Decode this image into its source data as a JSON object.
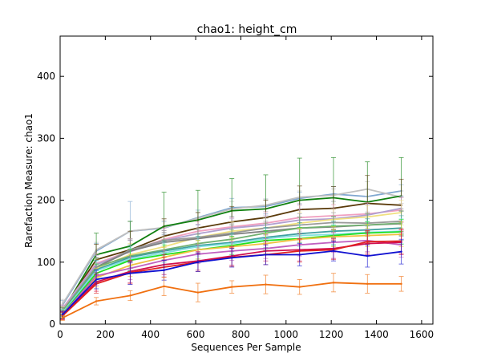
{
  "chart_data": {
    "type": "line",
    "title": "chao1: height_cm",
    "xlabel": "Sequences Per Sample",
    "ylabel": "Rarefaction Measure: chao1",
    "xlim": [
      0,
      1650
    ],
    "ylim": [
      0,
      465
    ],
    "xticks": [
      0,
      200,
      400,
      600,
      800,
      1000,
      1200,
      1400,
      1600
    ],
    "yticks": [
      0,
      100,
      200,
      300,
      400
    ],
    "x": [
      10,
      160,
      310,
      460,
      610,
      760,
      910,
      1060,
      1210,
      1360,
      1510
    ],
    "grid": false,
    "legend": "none",
    "series": [
      {
        "color": "#7fa7d0",
        "values": [
          30,
          118,
          150,
          155,
          172,
          188,
          190,
          203,
          210,
          206,
          215
        ],
        "err": [
          8,
          12,
          48,
          10,
          12,
          15,
          12,
          10,
          12,
          12,
          10
        ]
      },
      {
        "color": "#c0c0c0",
        "values": [
          32,
          120,
          150,
          156,
          171,
          186,
          192,
          205,
          208,
          218,
          205
        ],
        "err": [
          8,
          12,
          15,
          12,
          10,
          12,
          10,
          10,
          10,
          12,
          10
        ]
      },
      {
        "color": "#108010",
        "values": [
          20,
          112,
          126,
          158,
          168,
          183,
          186,
          200,
          204,
          197,
          207
        ],
        "err": [
          8,
          35,
          40,
          55,
          48,
          52,
          55,
          68,
          65,
          65,
          62
        ]
      },
      {
        "color": "#5a3a0a",
        "values": [
          22,
          104,
          120,
          142,
          155,
          165,
          172,
          185,
          187,
          195,
          192
        ],
        "err": [
          6,
          25,
          30,
          28,
          25,
          25,
          28,
          38,
          35,
          45,
          42
        ]
      },
      {
        "color": "#f0a0c0",
        "values": [
          25,
          98,
          118,
          137,
          150,
          157,
          163,
          172,
          175,
          178,
          184
        ],
        "err": [
          6,
          15,
          20,
          18,
          15,
          15,
          18,
          20,
          18,
          18,
          20
        ]
      },
      {
        "color": "#b0a0d0",
        "values": [
          24,
          96,
          117,
          135,
          146,
          155,
          160,
          168,
          170,
          176,
          187
        ],
        "err": [
          6,
          15,
          18,
          16,
          15,
          15,
          16,
          18,
          16,
          18,
          20
        ]
      },
      {
        "color": "#f0e080",
        "values": [
          22,
          90,
          112,
          125,
          140,
          150,
          155,
          163,
          169,
          173,
          180
        ],
        "err": [
          6,
          15,
          18,
          16,
          15,
          15,
          16,
          18,
          16,
          18,
          20
        ]
      },
      {
        "color": "#9a9a9a",
        "values": [
          20,
          92,
          120,
          135,
          140,
          147,
          155,
          160,
          164,
          163,
          166
        ],
        "err": [
          6,
          15,
          18,
          16,
          15,
          15,
          16,
          18,
          16,
          18,
          20
        ]
      },
      {
        "color": "#808080",
        "values": [
          21,
          92,
          118,
          132,
          138,
          145,
          150,
          155,
          157,
          160,
          162
        ],
        "err": [
          6,
          15,
          18,
          16,
          15,
          15,
          16,
          18,
          16,
          18,
          20
        ]
      },
      {
        "color": "#70b070",
        "values": [
          20,
          92,
          110,
          120,
          130,
          137,
          147,
          155,
          158,
          160,
          163
        ],
        "err": [
          6,
          15,
          18,
          16,
          15,
          15,
          16,
          18,
          16,
          18,
          20
        ]
      },
      {
        "color": "#40a0a0",
        "values": [
          18,
          88,
          108,
          118,
          127,
          132,
          140,
          146,
          150,
          152,
          155
        ],
        "err": [
          6,
          15,
          18,
          16,
          15,
          15,
          16,
          18,
          16,
          18,
          20
        ]
      },
      {
        "color": "#80e0e0",
        "values": [
          18,
          86,
          105,
          115,
          125,
          130,
          138,
          143,
          145,
          148,
          150
        ],
        "err": [
          6,
          15,
          18,
          16,
          15,
          15,
          16,
          18,
          16,
          18,
          20
        ]
      },
      {
        "color": "#20e020",
        "values": [
          16,
          82,
          103,
          112,
          120,
          127,
          135,
          138,
          143,
          147,
          149
        ],
        "err": [
          6,
          15,
          18,
          16,
          15,
          15,
          16,
          18,
          16,
          18,
          20
        ]
      },
      {
        "color": "#f0c040",
        "values": [
          16,
          75,
          95,
          108,
          120,
          125,
          130,
          137,
          141,
          143,
          145
        ],
        "err": [
          6,
          15,
          18,
          16,
          15,
          15,
          16,
          18,
          16,
          18,
          20
        ]
      },
      {
        "color": "#c060c0",
        "values": [
          15,
          78,
          90,
          103,
          113,
          118,
          122,
          128,
          132,
          135,
          128
        ],
        "err": [
          6,
          15,
          18,
          16,
          15,
          15,
          16,
          18,
          16,
          18,
          20
        ]
      },
      {
        "color": "#d01050",
        "values": [
          14,
          68,
          85,
          96,
          102,
          110,
          118,
          120,
          122,
          130,
          132
        ],
        "err": [
          6,
          15,
          18,
          16,
          15,
          15,
          16,
          18,
          16,
          18,
          20
        ]
      },
      {
        "color": "#e02020",
        "values": [
          13,
          65,
          83,
          92,
          100,
          108,
          112,
          118,
          120,
          133,
          134
        ],
        "err": [
          6,
          15,
          18,
          16,
          15,
          15,
          16,
          18,
          16,
          18,
          20
        ]
      },
      {
        "color": "#1010d0",
        "values": [
          15,
          72,
          82,
          87,
          100,
          107,
          112,
          112,
          118,
          110,
          117
        ],
        "err": [
          6,
          15,
          18,
          16,
          15,
          15,
          16,
          18,
          16,
          18,
          20
        ]
      },
      {
        "color": "#f07010",
        "values": [
          10,
          37,
          46,
          61,
          51,
          60,
          64,
          60,
          67,
          65,
          65
        ],
        "err": [
          4,
          6,
          8,
          15,
          15,
          10,
          15,
          12,
          15,
          15,
          12
        ]
      }
    ]
  }
}
